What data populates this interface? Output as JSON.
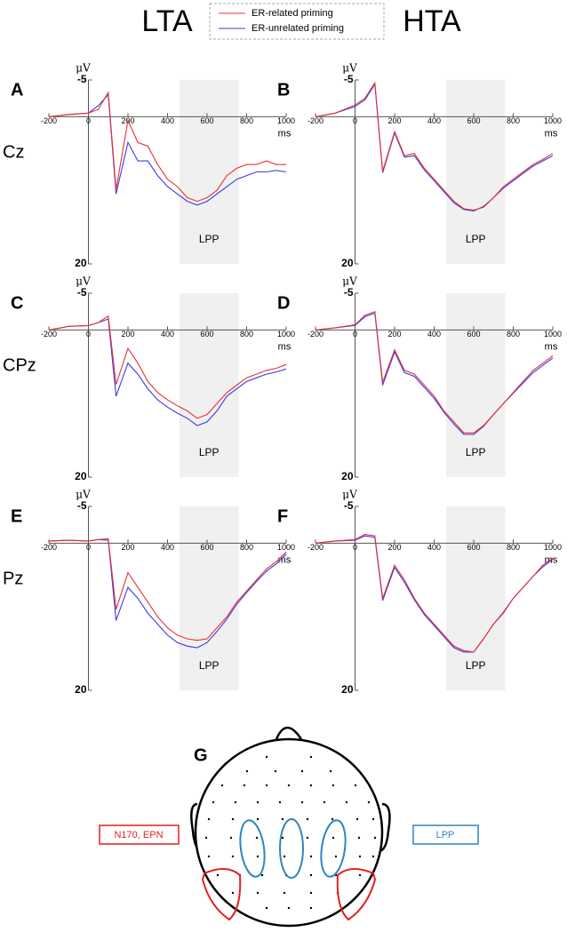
{
  "column_titles": [
    "LTA",
    "HTA"
  ],
  "legend": [
    {
      "name": "ER-related priming",
      "color": "#e8312f"
    },
    {
      "name": "ER-unrelated priming",
      "color": "#3a3ae8"
    }
  ],
  "chart_data": [
    {
      "type": "line",
      "label": "A",
      "electrode": "Cz",
      "y_unit": "μV",
      "x_unit": "ms",
      "annotation": "LPP",
      "inverted": true,
      "highlight": {
        "start": 460,
        "end": 760,
        "color": "#f0f0f0"
      },
      "xlim": [
        -200,
        1000
      ],
      "xticks": [
        -200,
        0,
        200,
        400,
        600,
        800,
        1000
      ],
      "ylim": [
        -5,
        20
      ],
      "yticks": [
        -5,
        20
      ],
      "x": [
        -200,
        -100,
        0,
        50,
        100,
        140,
        200,
        250,
        300,
        350,
        400,
        450,
        500,
        550,
        600,
        650,
        700,
        750,
        800,
        850,
        900,
        950,
        1000
      ],
      "series": [
        {
          "values": [
            0,
            -0.3,
            -0.5,
            -1,
            -3.3,
            9.9,
            0.5,
            3.5,
            4,
            6.5,
            8.5,
            9.5,
            11,
            11.5,
            11,
            10,
            8,
            7,
            6.5,
            6.5,
            6,
            6.5,
            6.5
          ]
        },
        {
          "values": [
            0,
            -0.3,
            -0.5,
            -1.5,
            -3,
            10.5,
            3.5,
            6,
            6,
            8,
            9.5,
            10.5,
            11.5,
            12,
            11.5,
            10.5,
            9.5,
            8.5,
            8,
            7.5,
            7.5,
            7.3,
            7.5
          ]
        }
      ]
    },
    {
      "type": "line",
      "label": "B",
      "y_unit": "μV",
      "x_unit": "ms",
      "annotation": "LPP",
      "inverted": true,
      "highlight": {
        "start": 460,
        "end": 760,
        "color": "#f0f0f0"
      },
      "xlim": [
        -200,
        1000
      ],
      "xticks": [
        -200,
        0,
        200,
        400,
        600,
        800,
        1000
      ],
      "ylim": [
        -5,
        20
      ],
      "yticks": [
        -5,
        20
      ],
      "x": [
        -200,
        -100,
        0,
        50,
        100,
        140,
        200,
        250,
        300,
        350,
        400,
        450,
        500,
        550,
        600,
        650,
        700,
        750,
        800,
        850,
        900,
        950,
        1000
      ],
      "series": [
        {
          "values": [
            0,
            -0.5,
            -1.6,
            -2.5,
            -4.6,
            7.4,
            2,
            5.3,
            5,
            7,
            8.5,
            10,
            11.5,
            12.5,
            12.7,
            12.3,
            11,
            9.5,
            8.5,
            7.5,
            6.5,
            5.8,
            5
          ]
        },
        {
          "values": [
            0,
            -0.5,
            -1.4,
            -2.3,
            -4.4,
            7.6,
            2.2,
            5.5,
            5.3,
            7.2,
            8.7,
            10.2,
            11.7,
            12.6,
            12.8,
            12.2,
            11,
            9.7,
            8.7,
            7.7,
            6.7,
            6,
            5.3
          ]
        }
      ]
    },
    {
      "type": "line",
      "label": "C",
      "electrode": "CPz",
      "y_unit": "μV",
      "x_unit": "ms",
      "annotation": "LPP",
      "inverted": true,
      "highlight": {
        "start": 460,
        "end": 760,
        "color": "#f0f0f0"
      },
      "xlim": [
        -200,
        1000
      ],
      "xticks": [
        -200,
        0,
        200,
        400,
        600,
        800,
        1000
      ],
      "ylim": [
        -5,
        20
      ],
      "yticks": [
        -5,
        20
      ],
      "x": [
        -200,
        -100,
        0,
        50,
        100,
        140,
        200,
        250,
        300,
        350,
        400,
        450,
        500,
        550,
        600,
        650,
        700,
        750,
        800,
        850,
        900,
        950,
        1000
      ],
      "series": [
        {
          "values": [
            0,
            -0.5,
            -0.6,
            -1,
            -1.9,
            7.4,
            2.5,
            4.5,
            7,
            8.5,
            9.5,
            10.3,
            11,
            12,
            11.5,
            10,
            8.5,
            7.5,
            6.5,
            6,
            5.5,
            5.2,
            4.7
          ]
        },
        {
          "values": [
            0,
            -0.5,
            -0.6,
            -1,
            -1.5,
            9,
            4.5,
            6,
            8,
            9.5,
            10.5,
            11.3,
            12,
            13,
            12.5,
            11,
            9,
            8,
            7,
            6.5,
            6,
            5.7,
            5.3
          ]
        }
      ]
    },
    {
      "type": "line",
      "label": "D",
      "y_unit": "μV",
      "x_unit": "ms",
      "annotation": "LPP",
      "inverted": true,
      "highlight": {
        "start": 460,
        "end": 760,
        "color": "#f0f0f0"
      },
      "xlim": [
        -200,
        1000
      ],
      "xticks": [
        -200,
        0,
        200,
        400,
        600,
        800,
        1000
      ],
      "ylim": [
        -5,
        20
      ],
      "yticks": [
        -5,
        20
      ],
      "x": [
        -200,
        -100,
        0,
        50,
        100,
        140,
        200,
        250,
        300,
        350,
        400,
        450,
        500,
        550,
        600,
        650,
        700,
        750,
        800,
        850,
        900,
        950,
        1000
      ],
      "series": [
        {
          "values": [
            0,
            -0.3,
            -0.7,
            -2,
            -2.5,
            7.1,
            2.7,
            5.5,
            6,
            7.5,
            9,
            11,
            12.5,
            14,
            14,
            13,
            11.5,
            10,
            8.5,
            7,
            5.5,
            4.5,
            3.5
          ]
        },
        {
          "values": [
            0,
            -0.3,
            -0.6,
            -1.8,
            -2.3,
            7.5,
            3,
            5.8,
            6.3,
            7.8,
            9.3,
            11.2,
            12.8,
            14.2,
            14.2,
            13.1,
            11.5,
            10,
            8.6,
            7.2,
            5.8,
            4.8,
            3.8
          ]
        }
      ]
    },
    {
      "type": "line",
      "label": "E",
      "electrode": "Pz",
      "y_unit": "μV",
      "x_unit": "ms",
      "annotation": "LPP",
      "inverted": true,
      "highlight": {
        "start": 460,
        "end": 760,
        "color": "#f0f0f0"
      },
      "xlim": [
        -200,
        1000
      ],
      "xticks": [
        -200,
        0,
        200,
        400,
        600,
        800,
        1000
      ],
      "ylim": [
        -5,
        20
      ],
      "yticks": [
        -5,
        20
      ],
      "x": [
        -200,
        -100,
        0,
        50,
        100,
        140,
        200,
        250,
        300,
        350,
        400,
        450,
        500,
        550,
        600,
        650,
        700,
        750,
        800,
        850,
        900,
        950,
        1000
      ],
      "series": [
        {
          "values": [
            -0.3,
            -0.4,
            -0.3,
            -0.5,
            -0.6,
            9,
            4,
            6,
            8,
            10,
            11.5,
            12.5,
            13,
            13.2,
            13,
            11.5,
            10,
            8,
            6.5,
            5,
            3.5,
            2.5,
            1.2
          ]
        },
        {
          "values": [
            -0.3,
            -0.4,
            -0.3,
            -0.5,
            -0.4,
            10.5,
            6,
            7.5,
            9.5,
            11,
            12.5,
            13.5,
            14,
            14.2,
            13.5,
            12,
            10.3,
            8.3,
            6.7,
            5.2,
            3.8,
            2.8,
            1.5
          ]
        }
      ]
    },
    {
      "type": "line",
      "label": "F",
      "y_unit": "μV",
      "x_unit": "ms",
      "annotation": "LPP",
      "inverted": true,
      "highlight": {
        "start": 460,
        "end": 760,
        "color": "#f0f0f0"
      },
      "xlim": [
        -200,
        1000
      ],
      "xticks": [
        -200,
        0,
        200,
        400,
        600,
        800,
        1000
      ],
      "ylim": [
        -5,
        20
      ],
      "yticks": [
        -5,
        20
      ],
      "x": [
        -200,
        -100,
        0,
        50,
        100,
        140,
        200,
        250,
        300,
        350,
        400,
        450,
        500,
        550,
        600,
        650,
        700,
        750,
        800,
        850,
        900,
        950,
        1000
      ],
      "series": [
        {
          "values": [
            0,
            -0.3,
            -0.5,
            -1.2,
            -1,
            7.5,
            3,
            5,
            7.5,
            9.5,
            11,
            12.5,
            14,
            14.6,
            14.8,
            13,
            11,
            9.5,
            7.5,
            6,
            4.5,
            3,
            2
          ]
        },
        {
          "values": [
            0,
            -0.3,
            -0.4,
            -1,
            -0.8,
            7.8,
            3.3,
            5.3,
            7.7,
            9.7,
            11.2,
            12.7,
            14.2,
            14.8,
            14.8,
            13,
            11,
            9.4,
            7.5,
            6,
            4.5,
            3.2,
            2.2
          ]
        }
      ]
    }
  ],
  "head_map": {
    "label": "G",
    "left_box": "N170, EPN",
    "right_box": "LPP"
  }
}
